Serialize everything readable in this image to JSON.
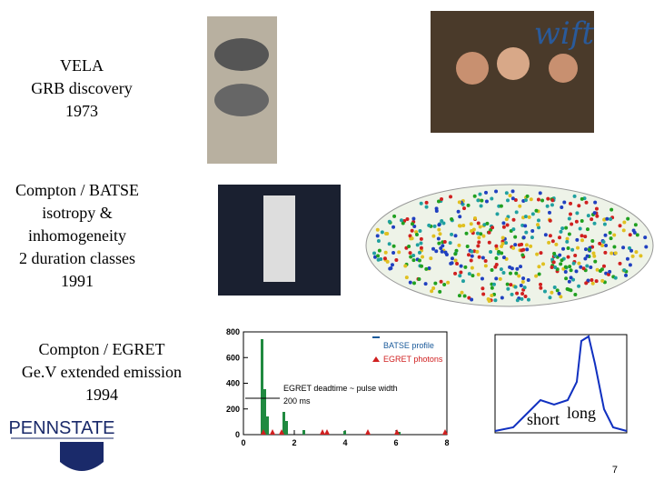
{
  "slide": {
    "blocks": [
      {
        "lines": [
          "VELA",
          "GRB discovery",
          "1973"
        ]
      },
      {
        "lines": [
          "Compton / BATSE",
          "isotropy &",
          "inhomogeneity",
          "2 duration classes",
          "1991"
        ]
      },
      {
        "lines": [
          "Compton / EGRET",
          "Ge.V extended emission",
          "1994"
        ]
      }
    ],
    "logo": "PENNSTATE",
    "swift_logo": "wift",
    "egret_plot": {
      "legend": [
        "BATSE profile",
        "EGRET photons"
      ],
      "annotation": "EGRET deadtime ~ pulse width",
      "arrow_label": "200 ms",
      "ylim": [
        0,
        800
      ],
      "yticks": [
        0,
        200,
        400,
        600,
        800
      ],
      "xlim": [
        0,
        8
      ],
      "xticks": [
        0,
        2,
        4,
        6,
        8
      ]
    },
    "duration_plot": {
      "labels": [
        "short",
        "long"
      ]
    },
    "page_number": "7"
  }
}
